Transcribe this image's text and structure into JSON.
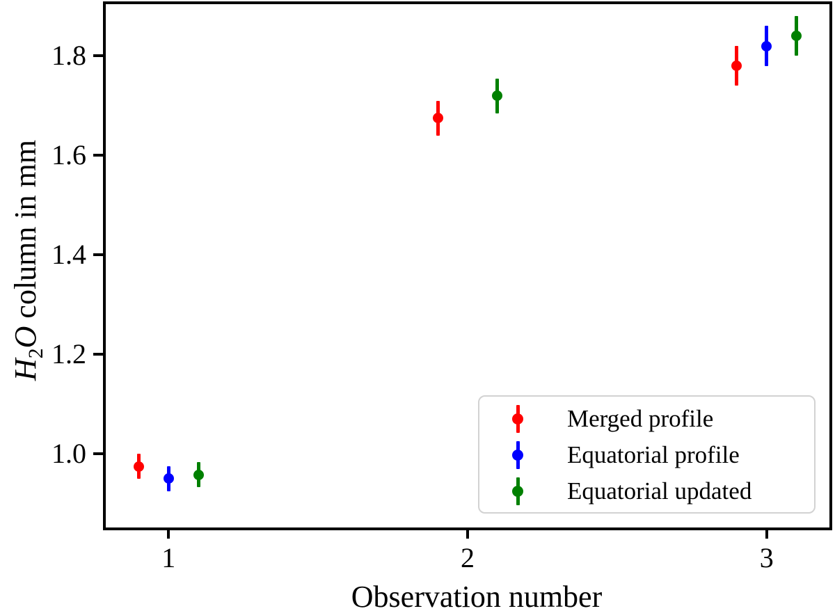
{
  "figure": {
    "background_color": "#ffffff",
    "axis_color": "#000000"
  },
  "chart_data": {
    "type": "scatter",
    "title": "",
    "xlabel": "Observation number",
    "ylabel": "H2O column in mm",
    "ylabel_parts": {
      "formula_h": "H",
      "formula_sub": "2",
      "formula_o": "O",
      "rest": " column in mm"
    },
    "xlim": [
      0.79,
      3.21
    ],
    "ylim": [
      0.852,
      1.904
    ],
    "x_tick_values": [
      1,
      2,
      3
    ],
    "x_tick_labels": [
      "1",
      "2",
      "3"
    ],
    "y_tick_values": [
      1.0,
      1.2,
      1.4,
      1.6,
      1.8
    ],
    "y_tick_labels": [
      "1.0",
      "1.2",
      "1.4",
      "1.6",
      "1.8"
    ],
    "grid": false,
    "marker_style": "errorbar-point",
    "legend_position": "lower right",
    "series": [
      {
        "name": "Merged profile",
        "color": "#ff0000",
        "points": [
          {
            "x": 0.9,
            "y": 0.975,
            "yerr": 0.025
          },
          {
            "x": 1.9,
            "y": 1.675,
            "yerr": 0.035
          },
          {
            "x": 2.9,
            "y": 1.78,
            "yerr": 0.04
          }
        ]
      },
      {
        "name": "Equatorial profile",
        "color": "#0000ff",
        "points": [
          {
            "x": 1.0,
            "y": 0.95,
            "yerr": 0.025
          },
          {
            "x": 3.0,
            "y": 1.82,
            "yerr": 0.04
          }
        ]
      },
      {
        "name": "Equatorial updated",
        "color": "#008000",
        "points": [
          {
            "x": 1.1,
            "y": 0.958,
            "yerr": 0.025
          },
          {
            "x": 2.1,
            "y": 1.72,
            "yerr": 0.035
          },
          {
            "x": 3.1,
            "y": 1.84,
            "yerr": 0.04
          }
        ]
      }
    ]
  }
}
